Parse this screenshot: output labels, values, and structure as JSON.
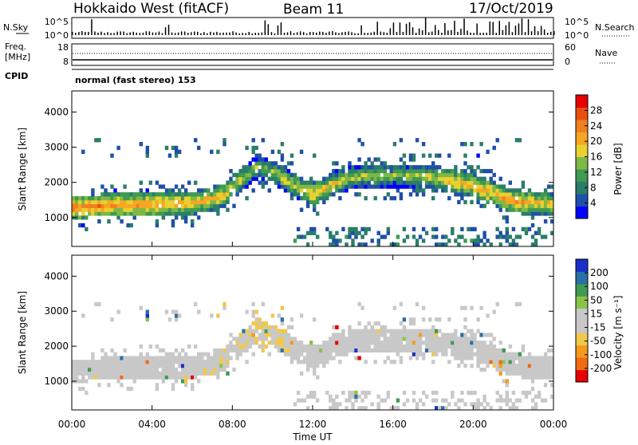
{
  "header": {
    "radar": "Hokkaido West (fitACF)",
    "beam": "Beam 11",
    "date": "17/Oct/2019"
  },
  "noise_panel": {
    "left_label": "N.Sky",
    "right_label": "N.Search",
    "left_ticks": [
      "10^5",
      "10^0"
    ],
    "right_ticks": [
      "10^5",
      "10^0"
    ]
  },
  "freq_panel": {
    "left_label_1": "Freq.",
    "left_label_2": "[MHz]",
    "right_label": "Nave",
    "left_ticks": [
      "18",
      "8"
    ],
    "right_ticks": [
      "60",
      "0"
    ]
  },
  "cpid": {
    "label": "CPID",
    "text": "normal (fast stereo) 153"
  },
  "colors": {
    "power": [
      "#0000ff",
      "#1f4fa8",
      "#2a7d6a",
      "#3f9a52",
      "#7fb845",
      "#e8d130",
      "#f5a623",
      "#f07f1e",
      "#ea4f12",
      "#e60000"
    ],
    "velocity": [
      "#e60000",
      "#f26a12",
      "#f59a1c",
      "#f2c84a",
      "#c8c8c8",
      "#c8c8c8",
      "#8bc34a",
      "#3f9a52",
      "#2a6fa8",
      "#1a2fc8"
    ],
    "velocity_gray": "#c8c8c8"
  },
  "chart_data": [
    {
      "type": "heatmap",
      "panel": "power",
      "ylabel": "Slant Range [km]",
      "yticks": [
        "4000",
        "3000",
        "2000",
        "1000"
      ],
      "ylim": [
        180,
        4600
      ],
      "xlim": [
        0,
        24
      ],
      "colorbar_label": "Power [dB]",
      "colorbar_ticks": [
        "28",
        "24",
        "20",
        "16",
        "12",
        "8",
        "4"
      ],
      "colorbar_range": [
        0,
        32
      ],
      "echo_band_center_km": [
        [
          0,
          1250
        ],
        [
          2,
          1300
        ],
        [
          4,
          1330
        ],
        [
          6,
          1370
        ],
        [
          7.5,
          1550
        ],
        [
          8.5,
          2050
        ],
        [
          9.3,
          2400
        ],
        [
          10,
          2250
        ],
        [
          11,
          1900
        ],
        [
          12,
          1600
        ],
        [
          13,
          1900
        ],
        [
          14,
          2100
        ],
        [
          16,
          2150
        ],
        [
          18,
          2100
        ],
        [
          20,
          1850
        ],
        [
          22,
          1400
        ],
        [
          24,
          1350
        ]
      ],
      "echo_power_db": [
        [
          0,
          24
        ],
        [
          4,
          22
        ],
        [
          7.5,
          20
        ],
        [
          9.3,
          14
        ],
        [
          12,
          20
        ],
        [
          16,
          14
        ],
        [
          19,
          20
        ],
        [
          22,
          22
        ],
        [
          24,
          18
        ]
      ],
      "near_range_echo_km": [
        0,
        700
      ],
      "near_range_echo_hours": [
        11,
        24
      ]
    },
    {
      "type": "heatmap",
      "panel": "velocity",
      "ylabel": "Slant Range [km]",
      "yticks": [
        "4000",
        "3000",
        "2000",
        "1000"
      ],
      "ylim": [
        180,
        4600
      ],
      "xlim": [
        0,
        24
      ],
      "xlabel": "Time UT",
      "xticks": [
        "00:00",
        "04:00",
        "08:00",
        "12:00",
        "16:00",
        "20:00",
        "00:00"
      ],
      "colorbar_label": "Velocity [m s⁻¹]",
      "colorbar_ticks": [
        "200",
        "100",
        "50",
        "15",
        "-15",
        "-50",
        "-100",
        "-200"
      ],
      "colorbar_range": [
        -250,
        250
      ],
      "dominant_velocity_ms": [
        [
          0,
          0
        ],
        [
          8,
          -30
        ],
        [
          9.5,
          -60
        ],
        [
          12,
          0
        ],
        [
          16,
          -20
        ],
        [
          20,
          0
        ],
        [
          24,
          0
        ]
      ]
    }
  ]
}
